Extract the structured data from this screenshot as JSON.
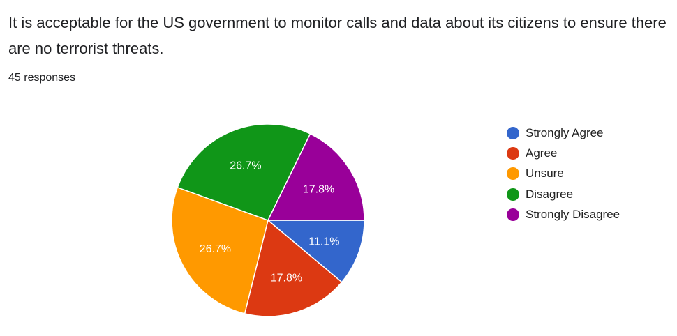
{
  "question": {
    "title": "It is acceptable for the US government to monitor calls and data about its citizens to ensure there are no terrorist threats.",
    "response_count": "45 responses"
  },
  "chart_data": {
    "type": "pie",
    "title": "It is acceptable for the US government to monitor calls and data about its citizens to ensure there are no terrorist threats.",
    "total_responses": 45,
    "categories": [
      "Strongly Agree",
      "Agree",
      "Unsure",
      "Disagree",
      "Strongly Disagree"
    ],
    "values": [
      5,
      8,
      12,
      12,
      8
    ],
    "percent_labels": [
      "11.1%",
      "17.8%",
      "26.7%",
      "26.7%",
      "17.8%"
    ],
    "colors": [
      "#3366cc",
      "#dc3912",
      "#ff9900",
      "#109618",
      "#990099"
    ],
    "legend_position": "right",
    "slice_order": "clockwise from 3 o'clock"
  }
}
